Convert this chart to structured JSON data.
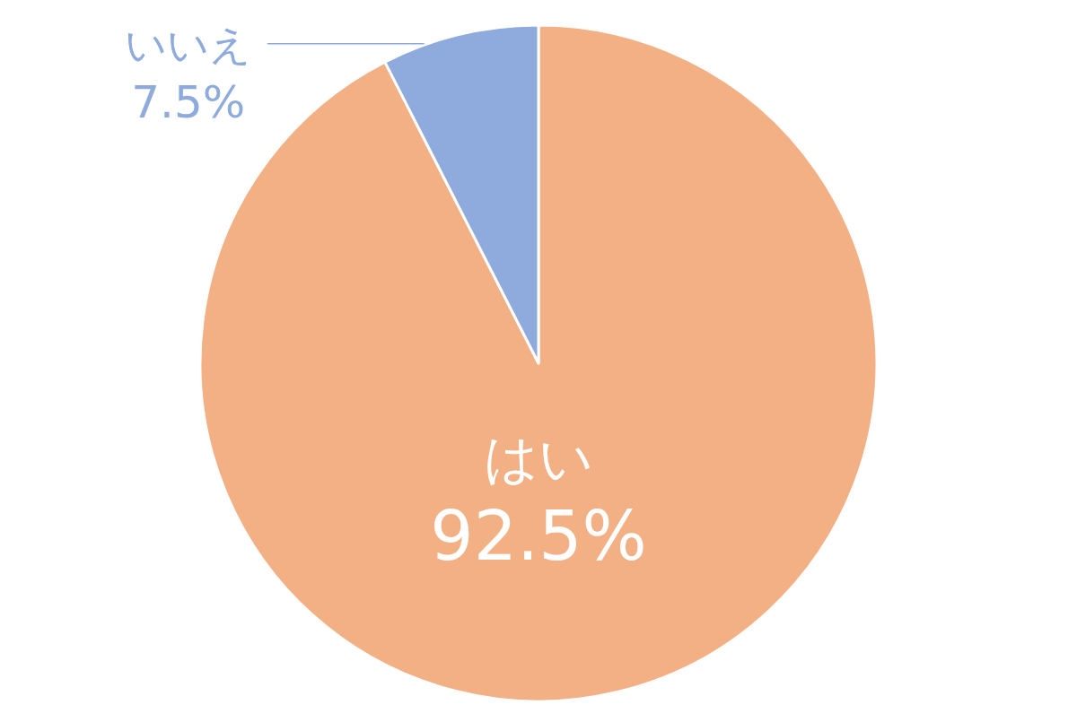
{
  "chart_data": {
    "type": "pie",
    "categories": [
      "はい",
      "いいえ"
    ],
    "values": [
      92.5,
      7.5
    ],
    "colors": [
      "#f2b084",
      "#8faadc"
    ],
    "value_labels": [
      "92.5%",
      "7.5%"
    ]
  }
}
